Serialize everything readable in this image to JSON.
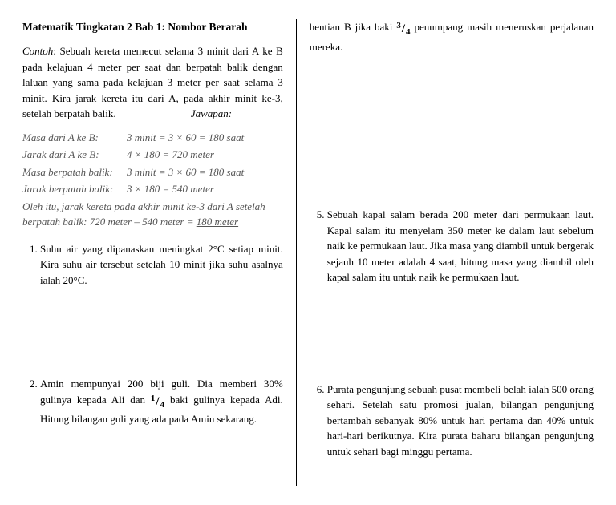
{
  "title": "Matematik Tingkatan 2 Bab 1: Nombor Berarah",
  "contoh_label": "Contoh",
  "contoh_text": ": Sebuah kereta memecut selama 3 minit dari A ke B pada kelajuan 4 meter per saat dan berpatah balik dengan laluan yang sama pada kelajuan 3 meter per saat selama 3 minit. Kira jarak kereta itu dari A, pada akhir minit ke-3, setelah berpatah balik.",
  "jawapan_label": "Jawapan:",
  "work": [
    {
      "k": "Masa dari A ke B:",
      "v": "3 minit = 3 × 60 = 180 saat"
    },
    {
      "k": "Jarak dari A ke B:",
      "v": "4 × 180 = 720 meter"
    },
    {
      "k": "Masa berpatah balik:",
      "v": "3 minit = 3 × 60 = 180 saat"
    },
    {
      "k": "Jarak berpatah balik:",
      "v": "3 × 180 = 540 meter"
    }
  ],
  "work_final_a": "Oleh itu, jarak kereta pada akhir minit ke-3 dari A setelah berpatah balik: 720 meter – 540 meter = ",
  "work_final_b": "180 meter",
  "q1": "Suhu air yang dipanaskan meningkat 2°C setiap minit. Kira suhu air tersebut setelah 10 minit jika suhu asalnya ialah 20°C.",
  "q2_a": "Amin mempunyai 200 biji guli. Dia memberi 30% gulinya kepada Ali dan ",
  "q2_b": " baki gulinya kepada Adi. Hitung bilangan guli yang ada pada Amin sekarang.",
  "top_right_a": "hentian B jika baki ",
  "top_right_b": " penumpang masih meneruskan perjalanan mereka.",
  "q5": "Sebuah kapal salam berada 200 meter dari permukaan laut. Kapal salam itu menyelam 350 meter ke dalam laut sebelum naik ke permukaan laut. Jika masa yang diambil untuk bergerak sejauh 10 meter adalah 4 saat, hitung masa yang diambil oleh kapal salam itu untuk naik ke permukaan laut.",
  "q6": "Purata pengunjung sebuah pusat membeli belah ialah 500 orang sehari. Setelah satu promosi jualan, bilangan pengunjung bertambah sebanyak 80% untuk hari pertama dan 40% untuk hari-hari berikutnya. Kira purata baharu bilangan pengunjung untuk sehari bagi minggu pertama.",
  "frac_1_4": {
    "n": "1",
    "d": "4"
  },
  "frac_3_4": {
    "n": "3",
    "d": "4"
  }
}
